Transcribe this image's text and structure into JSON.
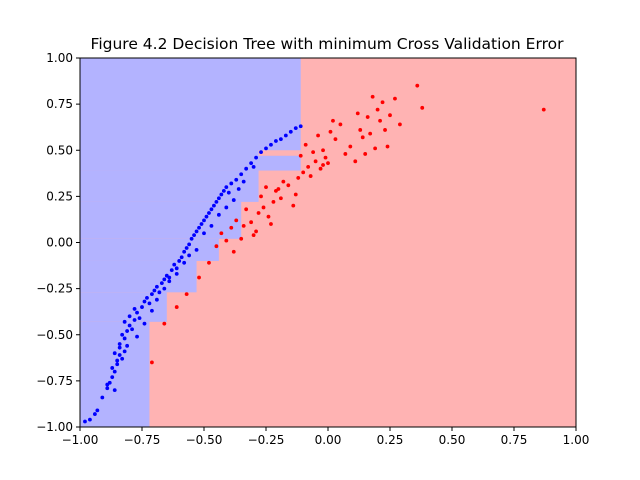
{
  "chart_data": {
    "type": "scatter",
    "title": "Figure 4.2 Decision Tree with minimum Cross Validation Error",
    "xlabel": "",
    "ylabel": "",
    "xlim": [
      -1.0,
      1.0
    ],
    "ylim": [
      -1.0,
      1.0
    ],
    "grid": false,
    "x_ticks": [
      "−1.00",
      "−0.75",
      "−0.50",
      "−0.25",
      "0.00",
      "0.25",
      "0.50",
      "0.75",
      "1.00"
    ],
    "y_ticks": [
      "−1.00",
      "−0.75",
      "−0.50",
      "−0.25",
      "0.00",
      "0.25",
      "0.50",
      "0.75",
      "1.00"
    ],
    "colors": {
      "region_blue": "#b3b3ff",
      "region_red": "#ffb3b3",
      "point_blue": "#0000ff",
      "point_red": "#ff0000"
    },
    "regions": [
      {
        "class": "blue",
        "x": [
          -1.0,
          -0.11
        ],
        "y": [
          0.39,
          1.0
        ]
      },
      {
        "class": "blue",
        "x": [
          -1.0,
          -0.28
        ],
        "y": [
          0.22,
          0.39
        ]
      },
      {
        "class": "blue",
        "x": [
          -1.0,
          -0.35
        ],
        "y": [
          0.02,
          0.22
        ]
      },
      {
        "class": "blue",
        "x": [
          -1.0,
          -0.44
        ],
        "y": [
          -0.1,
          0.02
        ]
      },
      {
        "class": "blue",
        "x": [
          -1.0,
          -0.53
        ],
        "y": [
          -0.27,
          -0.1
        ]
      },
      {
        "class": "blue",
        "x": [
          -1.0,
          -0.65
        ],
        "y": [
          -0.43,
          -0.27
        ]
      },
      {
        "class": "blue",
        "x": [
          -1.0,
          -0.72
        ],
        "y": [
          -1.0,
          -0.43
        ]
      },
      {
        "class": "red",
        "x": [
          -0.28,
          -0.11
        ],
        "y": [
          0.47,
          0.5
        ]
      }
    ],
    "series": [
      {
        "class": "blue",
        "points": [
          [
            -0.98,
            -0.97
          ],
          [
            -0.96,
            -0.96
          ],
          [
            -0.94,
            -0.93
          ],
          [
            -0.93,
            -0.91
          ],
          [
            -0.91,
            -0.84
          ],
          [
            -0.89,
            -0.79
          ],
          [
            -0.88,
            -0.76
          ],
          [
            -0.89,
            -0.77
          ],
          [
            -0.87,
            -0.73
          ],
          [
            -0.86,
            -0.7
          ],
          [
            -0.87,
            -0.68
          ],
          [
            -0.85,
            -0.64
          ],
          [
            -0.84,
            -0.61
          ],
          [
            -0.86,
            -0.6
          ],
          [
            -0.84,
            -0.57
          ],
          [
            -0.85,
            -0.66
          ],
          [
            -0.83,
            -0.63
          ],
          [
            -0.82,
            -0.59
          ],
          [
            -0.84,
            -0.55
          ],
          [
            -0.82,
            -0.52
          ],
          [
            -0.83,
            -0.5
          ],
          [
            -0.81,
            -0.48
          ],
          [
            -0.8,
            -0.45
          ],
          [
            -0.82,
            -0.43
          ],
          [
            -0.79,
            -0.47
          ],
          [
            -0.78,
            -0.42
          ],
          [
            -0.8,
            -0.4
          ],
          [
            -0.77,
            -0.38
          ],
          [
            -0.76,
            -0.41
          ],
          [
            -0.78,
            -0.36
          ],
          [
            -0.75,
            -0.35
          ],
          [
            -0.74,
            -0.32
          ],
          [
            -0.73,
            -0.3
          ],
          [
            -0.72,
            -0.33
          ],
          [
            -0.71,
            -0.28
          ],
          [
            -0.7,
            -0.26
          ],
          [
            -0.69,
            -0.24
          ],
          [
            -0.68,
            -0.27
          ],
          [
            -0.67,
            -0.22
          ],
          [
            -0.66,
            -0.2
          ],
          [
            -0.65,
            -0.18
          ],
          [
            -0.64,
            -0.21
          ],
          [
            -0.63,
            -0.15
          ],
          [
            -0.62,
            -0.12
          ],
          [
            -0.61,
            -0.14
          ],
          [
            -0.6,
            -0.1
          ],
          [
            -0.59,
            -0.08
          ],
          [
            -0.58,
            -0.05
          ],
          [
            -0.57,
            -0.03
          ],
          [
            -0.56,
            -0.01
          ],
          [
            -0.55,
            0.02
          ],
          [
            -0.54,
            0.04
          ],
          [
            -0.53,
            0.06
          ],
          [
            -0.52,
            0.08
          ],
          [
            -0.51,
            0.1
          ],
          [
            -0.5,
            0.12
          ],
          [
            -0.49,
            0.14
          ],
          [
            -0.48,
            0.16
          ],
          [
            -0.47,
            0.18
          ],
          [
            -0.46,
            0.2
          ],
          [
            -0.45,
            0.22
          ],
          [
            -0.44,
            0.24
          ],
          [
            -0.43,
            0.26
          ],
          [
            -0.42,
            0.28
          ],
          [
            -0.41,
            0.3
          ],
          [
            -0.4,
            0.27
          ],
          [
            -0.39,
            0.32
          ],
          [
            -0.37,
            0.34
          ],
          [
            -0.35,
            0.37
          ],
          [
            -0.33,
            0.4
          ],
          [
            -0.31,
            0.43
          ],
          [
            -0.29,
            0.46
          ],
          [
            -0.27,
            0.49
          ],
          [
            -0.25,
            0.51
          ],
          [
            -0.23,
            0.53
          ],
          [
            -0.21,
            0.55
          ],
          [
            -0.19,
            0.56
          ],
          [
            -0.17,
            0.58
          ],
          [
            -0.15,
            0.6
          ],
          [
            -0.13,
            0.62
          ],
          [
            -0.11,
            0.63
          ],
          [
            -0.86,
            -0.8
          ],
          [
            -0.81,
            -0.56
          ],
          [
            -0.77,
            -0.51
          ],
          [
            -0.74,
            -0.44
          ],
          [
            -0.71,
            -0.37
          ],
          [
            -0.69,
            -0.31
          ],
          [
            -0.66,
            -0.25
          ],
          [
            -0.64,
            -0.19
          ],
          [
            -0.61,
            -0.17
          ],
          [
            -0.58,
            -0.11
          ],
          [
            -0.56,
            -0.07
          ],
          [
            -0.53,
            -0.04
          ],
          [
            -0.5,
            0.05
          ],
          [
            -0.47,
            0.09
          ],
          [
            -0.44,
            0.15
          ],
          [
            -0.41,
            0.19
          ],
          [
            -0.38,
            0.23
          ],
          [
            -0.36,
            0.29
          ],
          [
            -0.34,
            0.33
          ],
          [
            -0.3,
            0.41
          ]
        ]
      },
      {
        "class": "red",
        "points": [
          [
            -0.71,
            -0.65
          ],
          [
            -0.66,
            -0.44
          ],
          [
            -0.61,
            -0.35
          ],
          [
            -0.57,
            -0.28
          ],
          [
            -0.52,
            -0.19
          ],
          [
            -0.48,
            -0.11
          ],
          [
            -0.45,
            -0.02
          ],
          [
            -0.43,
            0.05
          ],
          [
            -0.41,
            0.01
          ],
          [
            -0.39,
            0.08
          ],
          [
            -0.38,
            -0.05
          ],
          [
            -0.37,
            0.12
          ],
          [
            -0.35,
            0.02
          ],
          [
            -0.34,
            0.09
          ],
          [
            -0.33,
            0.18
          ],
          [
            -0.31,
            0.11
          ],
          [
            -0.3,
            0.04
          ],
          [
            -0.28,
            0.16
          ],
          [
            -0.27,
            0.25
          ],
          [
            -0.26,
            0.19
          ],
          [
            -0.25,
            0.3
          ],
          [
            -0.24,
            0.14
          ],
          [
            -0.22,
            0.22
          ],
          [
            -0.21,
            0.28
          ],
          [
            -0.19,
            0.24
          ],
          [
            -0.18,
            0.33
          ],
          [
            -0.16,
            0.31
          ],
          [
            -0.14,
            0.2
          ],
          [
            -0.13,
            0.26
          ],
          [
            -0.11,
            0.47
          ],
          [
            -0.1,
            0.38
          ],
          [
            -0.09,
            0.53
          ],
          [
            -0.08,
            0.41
          ],
          [
            -0.07,
            0.36
          ],
          [
            -0.06,
            0.49
          ],
          [
            -0.05,
            0.44
          ],
          [
            -0.04,
            0.58
          ],
          [
            -0.03,
            0.4
          ],
          [
            -0.02,
            0.5
          ],
          [
            -0.01,
            0.46
          ],
          [
            0.0,
            0.43
          ],
          [
            0.01,
            0.6
          ],
          [
            0.02,
            0.66
          ],
          [
            0.05,
            0.64
          ],
          [
            0.09,
            0.52
          ],
          [
            0.11,
            0.44
          ],
          [
            0.13,
            0.61
          ],
          [
            0.15,
            0.48
          ],
          [
            0.16,
            0.68
          ],
          [
            0.17,
            0.59
          ],
          [
            0.18,
            0.79
          ],
          [
            0.19,
            0.51
          ],
          [
            0.2,
            0.72
          ],
          [
            0.21,
            0.66
          ],
          [
            0.22,
            0.76
          ],
          [
            0.23,
            0.61
          ],
          [
            0.24,
            0.52
          ],
          [
            0.27,
            0.78
          ],
          [
            0.29,
            0.64
          ],
          [
            0.36,
            0.85
          ],
          [
            0.38,
            0.73
          ],
          [
            0.87,
            0.72
          ],
          [
            -0.02,
            0.42
          ],
          [
            0.03,
            0.56
          ],
          [
            0.07,
            0.48
          ],
          [
            0.12,
            0.7
          ],
          [
            0.14,
            0.57
          ],
          [
            0.25,
            0.69
          ],
          [
            -0.12,
            0.35
          ],
          [
            -0.2,
            0.29
          ],
          [
            -0.23,
            0.1
          ],
          [
            -0.29,
            0.06
          ]
        ]
      }
    ]
  }
}
